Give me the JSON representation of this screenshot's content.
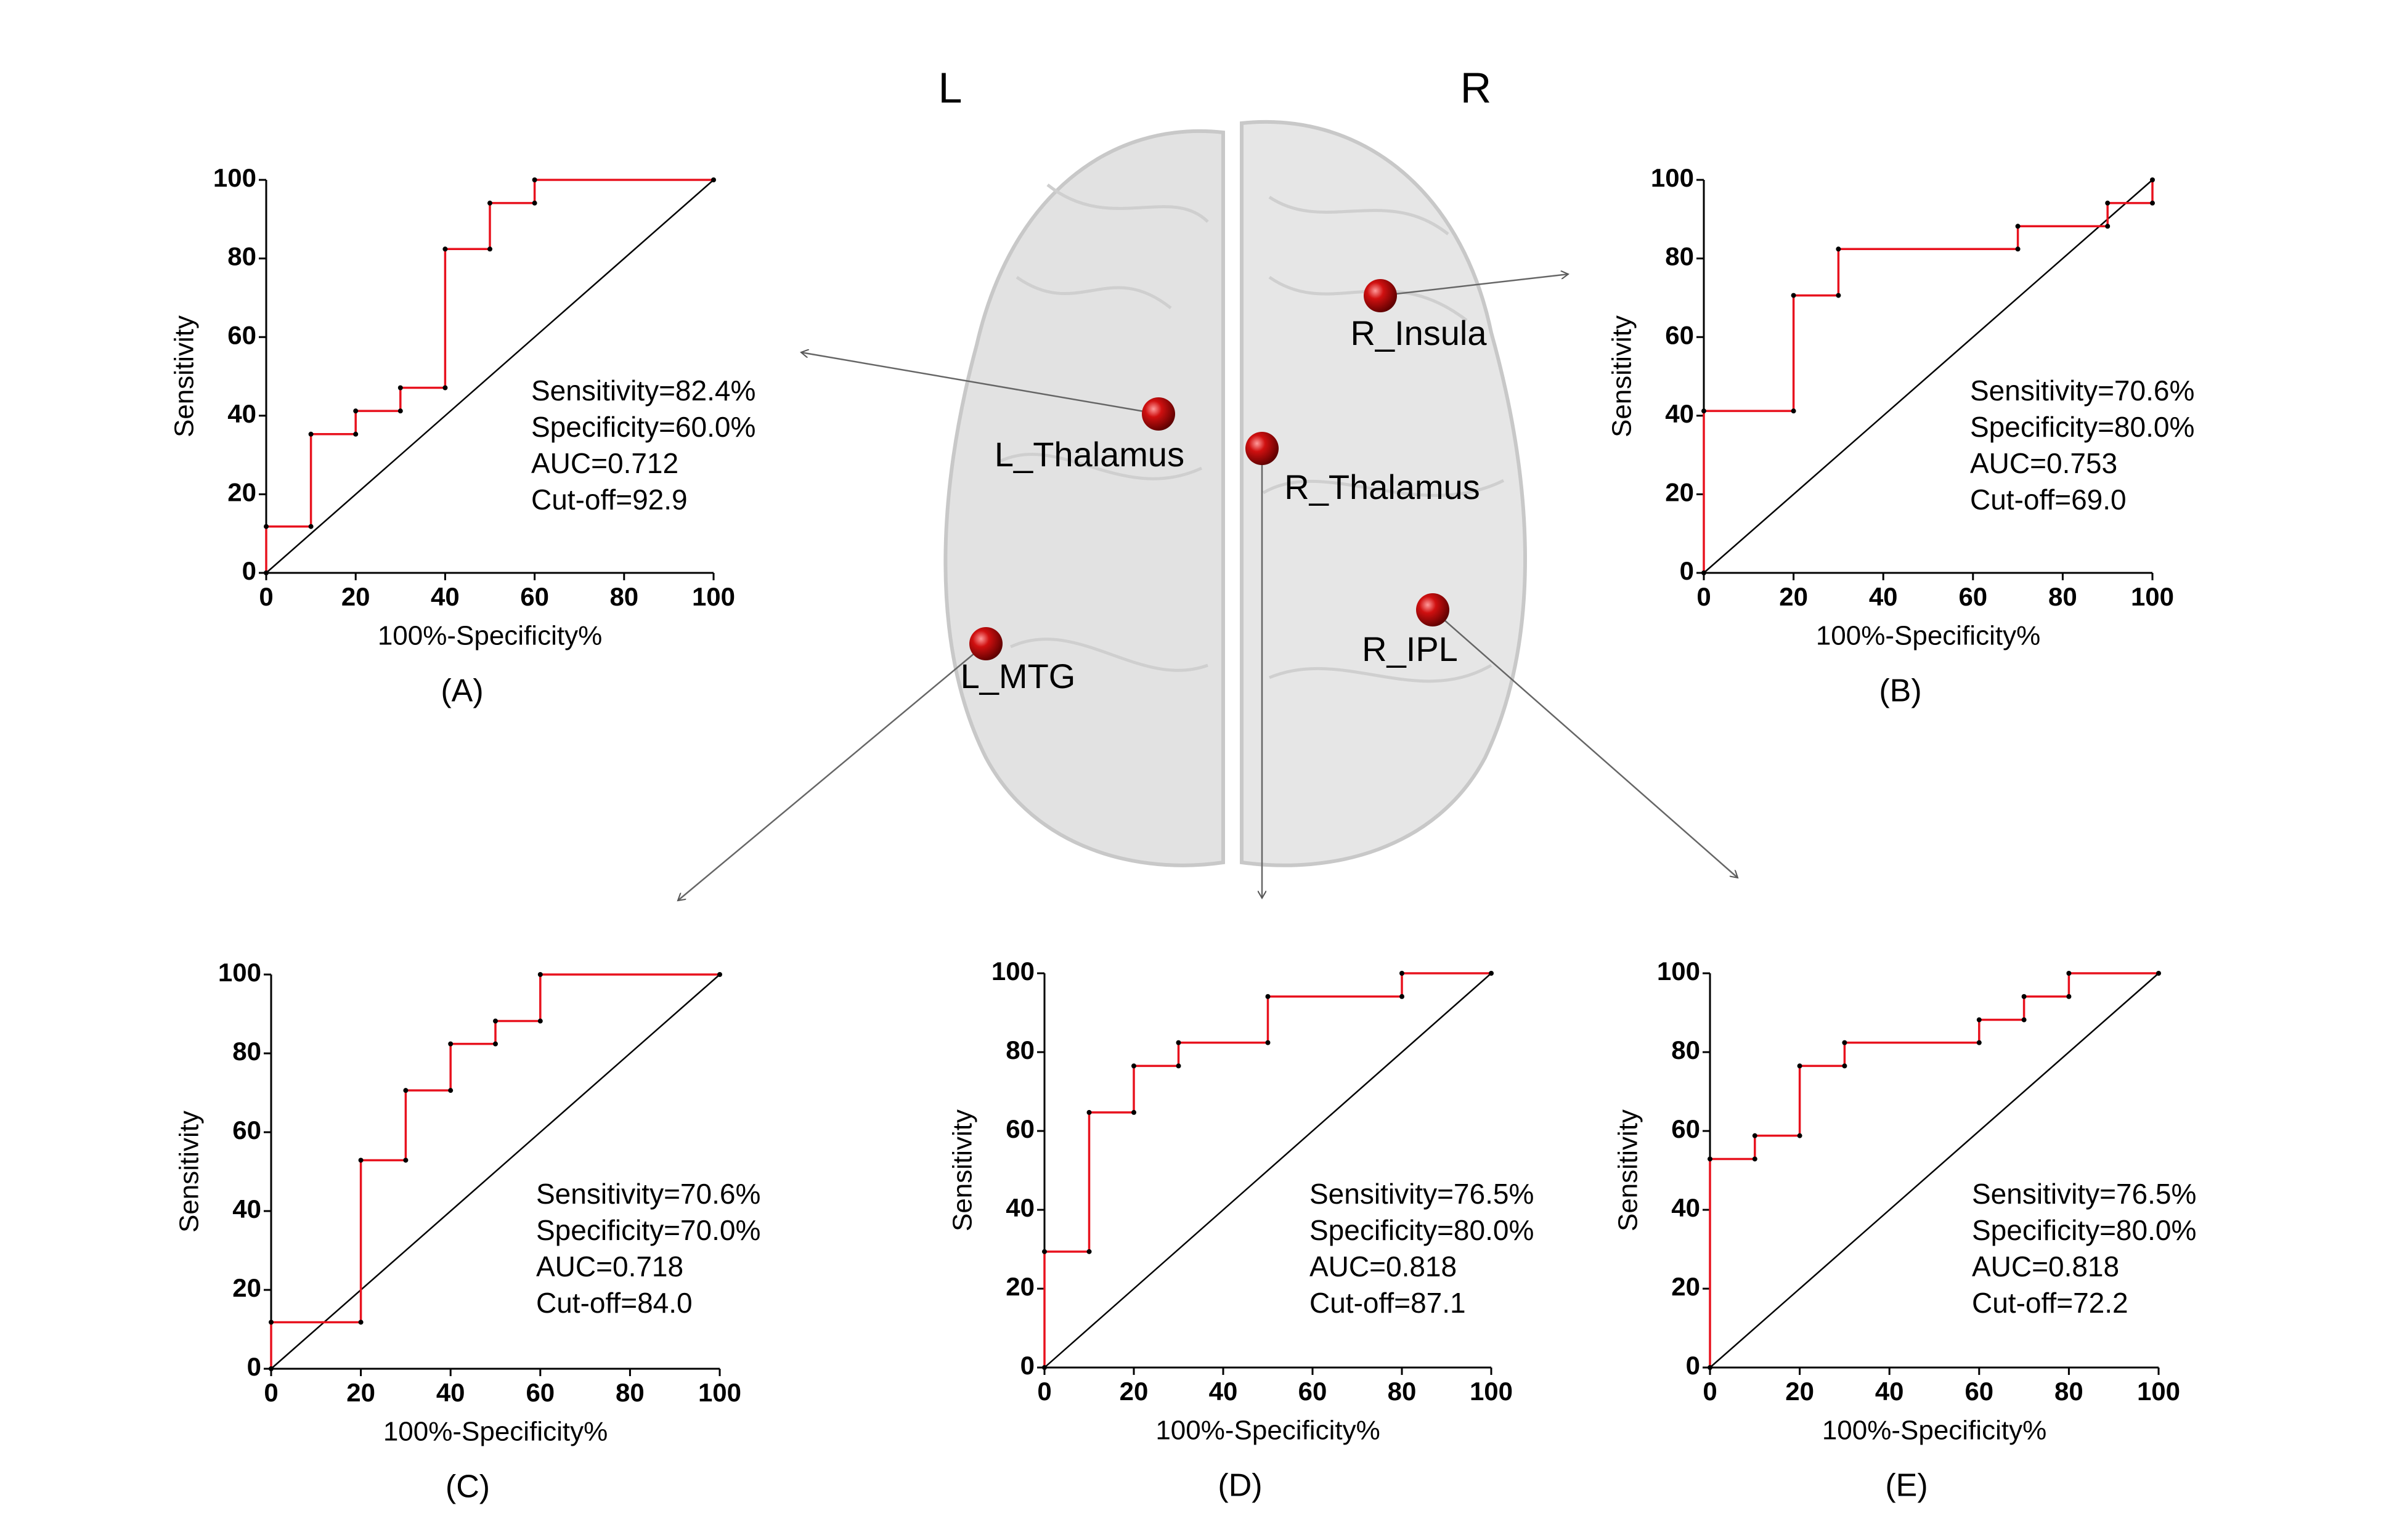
{
  "brain": {
    "hemispheres": [
      "L",
      "R"
    ],
    "regions": [
      "L_Thalamus",
      "R_Insula",
      "R_Thalamus",
      "L_MTG",
      "R_IPL"
    ]
  },
  "chart_data": [
    {
      "type": "line",
      "panel": "(A)",
      "xlabel": "100%-Specificity%",
      "ylabel": "Sensitivity",
      "annotations": [
        "Sensitivity=82.4%",
        "Specificity=60.0%",
        "AUC=0.712",
        "Cut-off=92.9"
      ],
      "x": [
        0,
        0,
        10,
        10,
        20,
        20,
        30,
        30,
        40,
        40,
        50,
        50,
        60,
        60,
        100
      ],
      "values": [
        0,
        11.8,
        11.8,
        35.3,
        35.3,
        41.2,
        41.2,
        47.1,
        47.1,
        82.4,
        82.4,
        94.1,
        94.1,
        100,
        100
      ],
      "color": "#e8121e",
      "xlim": [
        0,
        100
      ],
      "ylim": [
        0,
        100
      ],
      "xticks": [
        0,
        20,
        40,
        60,
        80,
        100
      ],
      "yticks": [
        0,
        20,
        40,
        60,
        80,
        100
      ]
    },
    {
      "type": "line",
      "panel": "(B)",
      "xlabel": "100%-Specificity%",
      "ylabel": "Sensitivity",
      "annotations": [
        "Sensitivity=70.6%",
        "Specificity=80.0%",
        "AUC=0.753",
        "Cut-off=69.0"
      ],
      "x": [
        0,
        0,
        20,
        20,
        30,
        30,
        70,
        70,
        90,
        90,
        100,
        100
      ],
      "values": [
        0,
        41.2,
        41.2,
        70.6,
        70.6,
        82.4,
        82.4,
        88.2,
        88.2,
        94.1,
        94.1,
        100
      ],
      "color": "#e8121e",
      "xlim": [
        0,
        100
      ],
      "ylim": [
        0,
        100
      ],
      "xticks": [
        0,
        20,
        40,
        60,
        80,
        100
      ],
      "yticks": [
        0,
        20,
        40,
        60,
        80,
        100
      ]
    },
    {
      "type": "line",
      "panel": "(C)",
      "xlabel": "100%-Specificity%",
      "ylabel": "Sensitivity",
      "annotations": [
        "Sensitivity=70.6%",
        "Specificity=70.0%",
        "AUC=0.718",
        "Cut-off=84.0"
      ],
      "x": [
        0,
        0,
        20,
        20,
        30,
        30,
        40,
        40,
        50,
        50,
        60,
        60,
        100
      ],
      "values": [
        0,
        11.8,
        11.8,
        52.9,
        52.9,
        70.6,
        70.6,
        82.4,
        82.4,
        88.2,
        88.2,
        100,
        100
      ],
      "color": "#e8121e",
      "xlim": [
        0,
        100
      ],
      "ylim": [
        0,
        100
      ],
      "xticks": [
        0,
        20,
        40,
        60,
        80,
        100
      ],
      "yticks": [
        0,
        20,
        40,
        60,
        80,
        100
      ]
    },
    {
      "type": "line",
      "panel": "(D)",
      "xlabel": "100%-Specificity%",
      "ylabel": "Sensitivity",
      "annotations": [
        "Sensitivity=76.5%",
        "Specificity=80.0%",
        "AUC=0.818",
        "Cut-off=87.1"
      ],
      "x": [
        0,
        0,
        10,
        10,
        20,
        20,
        30,
        30,
        50,
        50,
        80,
        80,
        100
      ],
      "values": [
        0,
        29.4,
        29.4,
        64.7,
        64.7,
        76.5,
        76.5,
        82.4,
        82.4,
        94.1,
        94.1,
        100,
        100
      ],
      "color": "#e8121e",
      "xlim": [
        0,
        100
      ],
      "ylim": [
        0,
        100
      ],
      "xticks": [
        0,
        20,
        40,
        60,
        80,
        100
      ],
      "yticks": [
        0,
        20,
        40,
        60,
        80,
        100
      ]
    },
    {
      "type": "line",
      "panel": "(E)",
      "xlabel": "100%-Specificity%",
      "ylabel": "Sensitivity",
      "annotations": [
        "Sensitivity=76.5%",
        "Specificity=80.0%",
        "AUC=0.818",
        "Cut-off=72.2"
      ],
      "x": [
        0,
        0,
        10,
        10,
        20,
        20,
        30,
        30,
        60,
        60,
        70,
        70,
        80,
        80,
        100
      ],
      "values": [
        0,
        52.9,
        52.9,
        58.8,
        58.8,
        76.5,
        76.5,
        82.4,
        82.4,
        88.2,
        88.2,
        94.1,
        94.1,
        100,
        100
      ],
      "color": "#e8121e",
      "xlim": [
        0,
        100
      ],
      "ylim": [
        0,
        100
      ],
      "xticks": [
        0,
        20,
        40,
        60,
        80,
        100
      ],
      "yticks": [
        0,
        20,
        40,
        60,
        80,
        100
      ]
    }
  ]
}
